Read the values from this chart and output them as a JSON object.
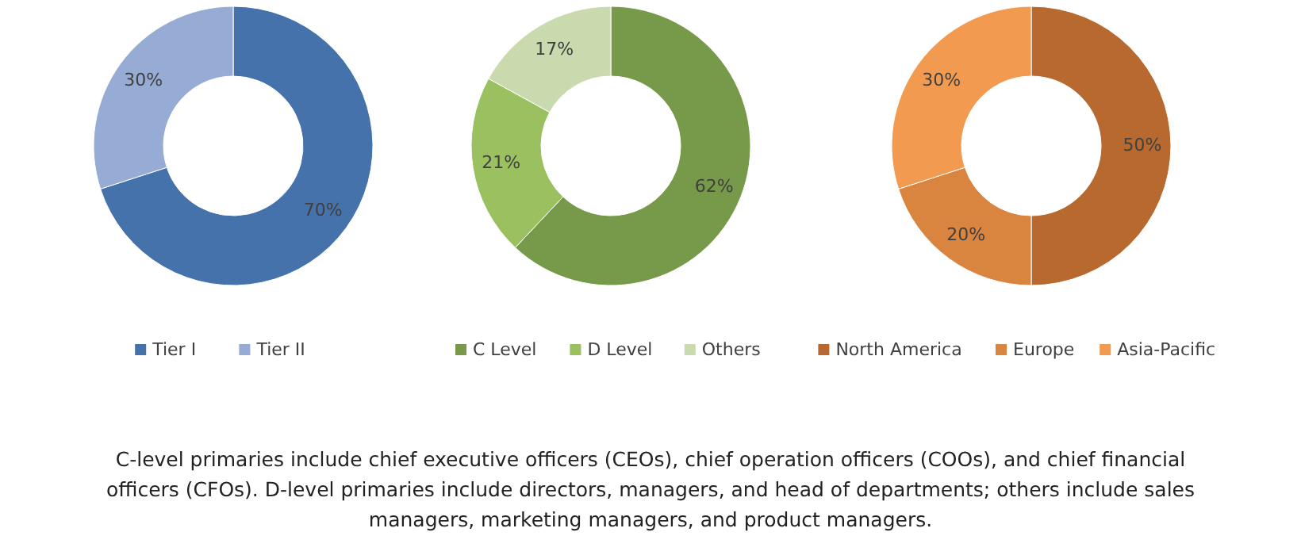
{
  "chart_data": [
    {
      "type": "donut",
      "categories": [
        "Tier I",
        "Tier II"
      ],
      "values": [
        70,
        30
      ],
      "value_labels": [
        "70%",
        "30%"
      ],
      "colors": [
        "#4672ab",
        "#97acd4"
      ],
      "legend": "bottom"
    },
    {
      "type": "donut",
      "categories": [
        "C Level",
        "D Level",
        "Others"
      ],
      "values": [
        62,
        21,
        17
      ],
      "value_labels": [
        "62%",
        "21%",
        "17%"
      ],
      "colors": [
        "#76994a",
        "#9bc060",
        "#c9dbae"
      ],
      "legend": "bottom"
    },
    {
      "type": "donut",
      "categories": [
        "North America",
        "Europe",
        "Asia-Pacific"
      ],
      "values": [
        50,
        20,
        30
      ],
      "value_labels": [
        "50%",
        "20%",
        "30%"
      ],
      "colors": [
        "#b8692f",
        "#d9843f",
        "#f29a4f"
      ],
      "legend": "bottom",
      "annotations": [
        "C-level primaries include chief executive officers (CEOs), chief operation officers (COOs), and chief financial officers (CFOs). D-level primaries include directors, managers, and head of departments; others include sales managers, marketing managers, and product managers."
      ]
    }
  ]
}
